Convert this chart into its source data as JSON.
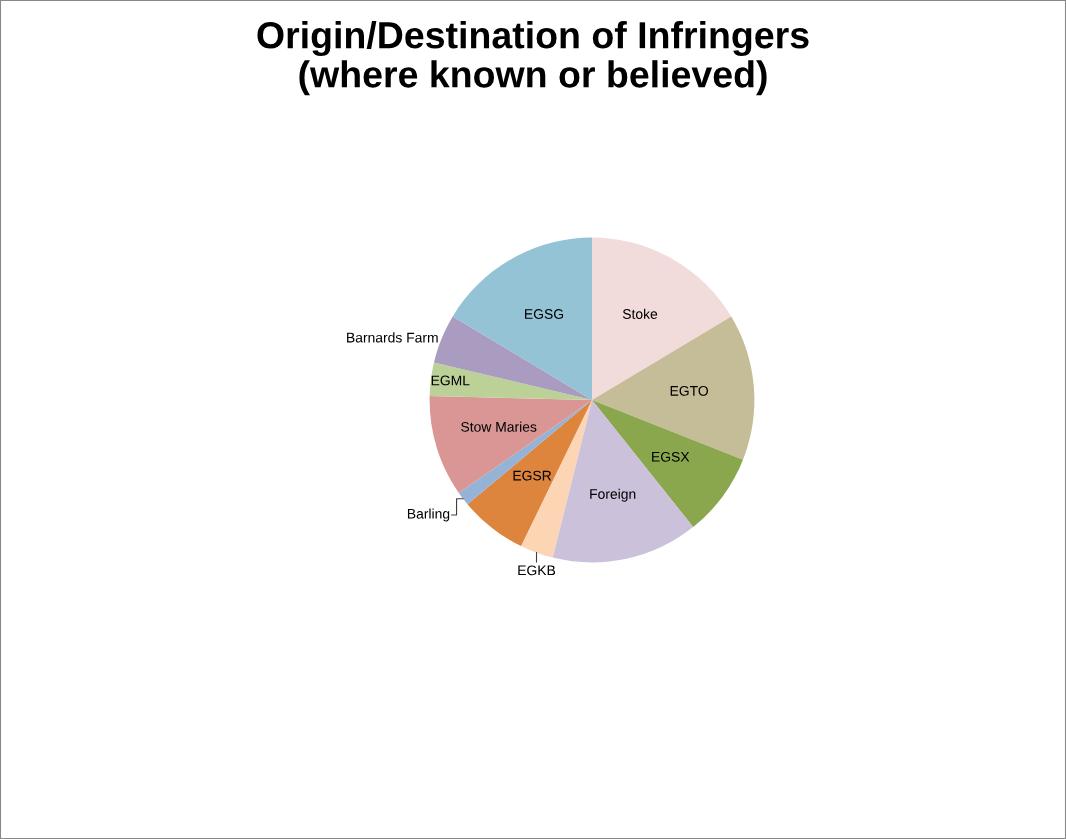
{
  "chart_data": {
    "type": "pie",
    "title": "Origin/Destination of Infringers\n(where known or believed)",
    "categories": [
      "Stoke",
      "EGTO",
      "EGSX",
      "Foreign",
      "EGKB",
      "EGSR",
      "Barling",
      "Stow Maries",
      "EGML",
      "Barnards Farm",
      "EGSG"
    ],
    "values": [
      16.4,
      14.6,
      8.3,
      14.6,
      3.3,
      6.7,
      1.4,
      10.1,
      3.3,
      4.9,
      16.4
    ],
    "colors": [
      "#f2dcdb",
      "#c4bd97",
      "#8aa74e",
      "#ccc1da",
      "#fcd5b5",
      "#dd843d",
      "#95b3d7",
      "#d99694",
      "#bbd197",
      "#aa9bc0",
      "#93c3d5"
    ],
    "legend": false
  }
}
